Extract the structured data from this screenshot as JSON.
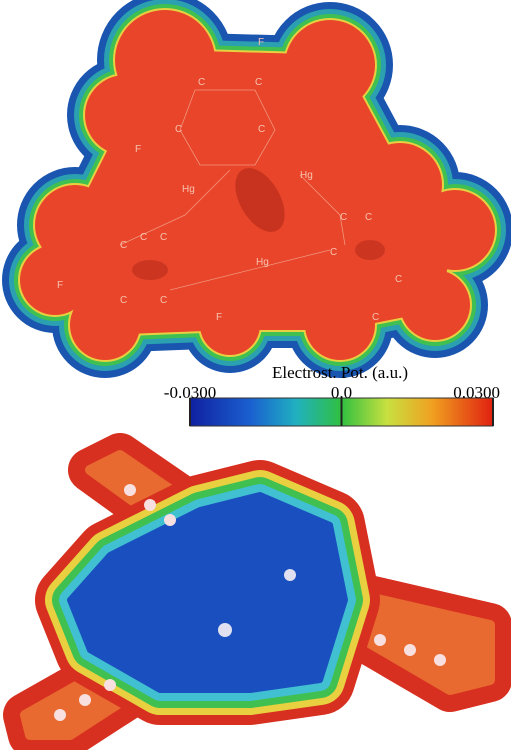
{
  "top_map": {
    "atom_labels": [
      "F",
      "C",
      "C",
      "C",
      "C",
      "F",
      "Hg",
      "Hg",
      "Hg",
      "C",
      "C",
      "C",
      "C",
      "C",
      "C",
      "F",
      "C",
      "C",
      "F",
      "C",
      "C"
    ]
  },
  "colorbar": {
    "title": "Electrost. Pot. (a.u.)",
    "lim": [
      -0.03,
      0.03
    ],
    "ticks": [
      {
        "value": -0.03,
        "label": "-0.0300"
      },
      {
        "value": 0,
        "label": "0.0"
      },
      {
        "value": 0.03,
        "label": "0.0300"
      }
    ]
  }
}
